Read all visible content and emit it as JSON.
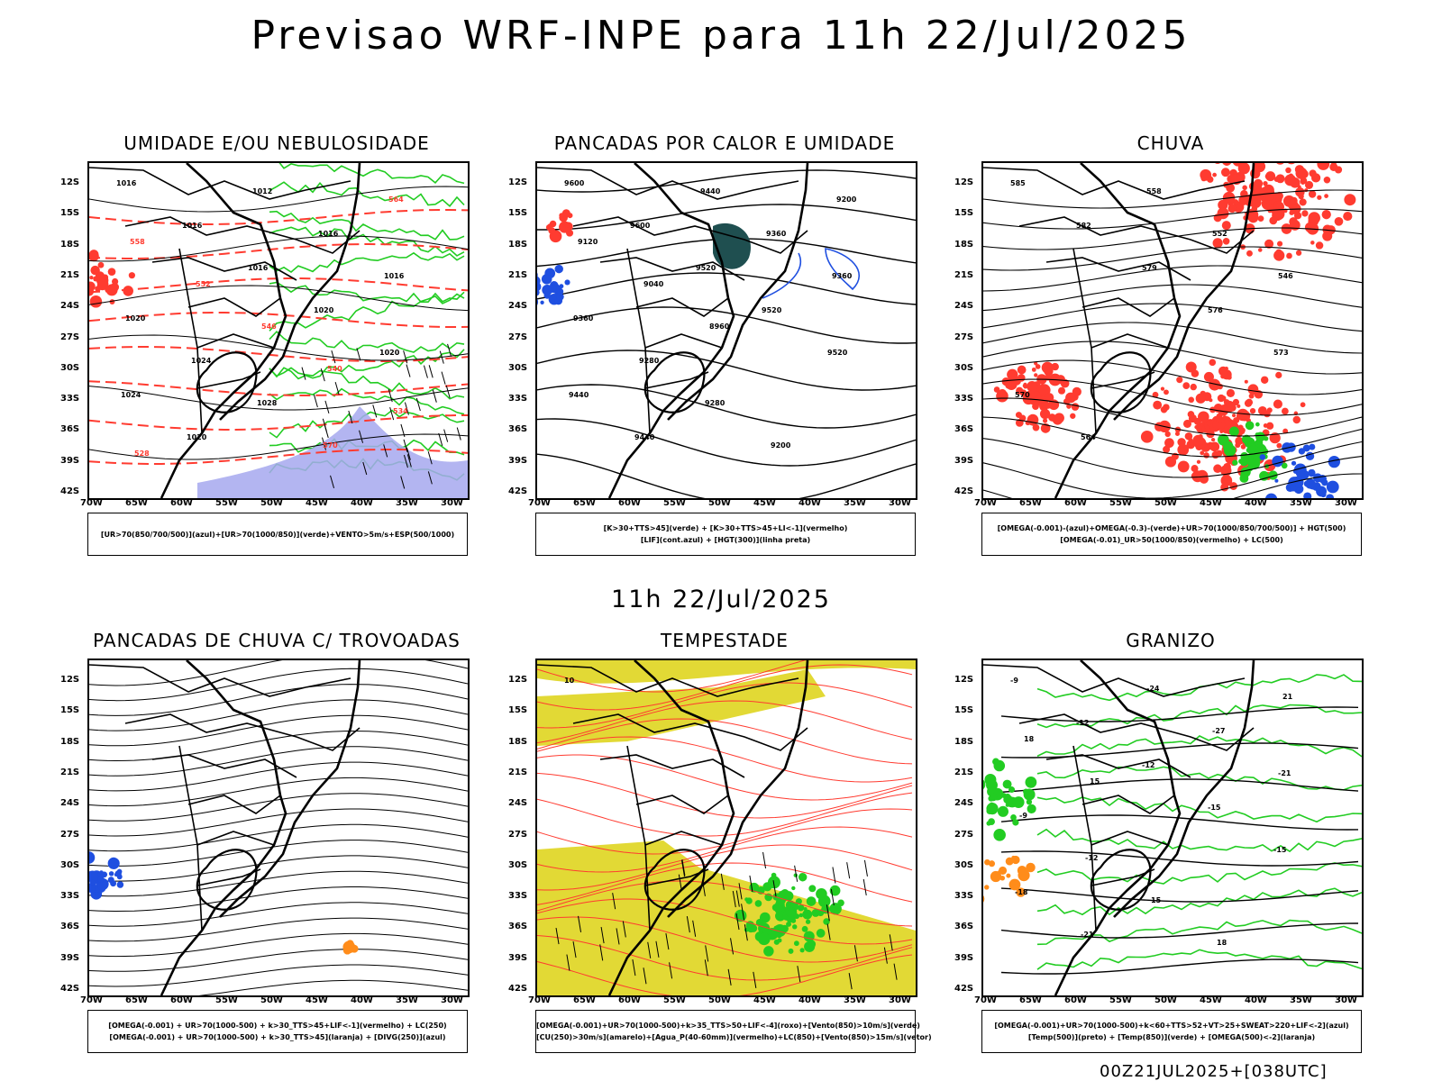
{
  "header": {
    "title": "Previsao WRF-INPE  para 11h 22/Jul/2025"
  },
  "mid_label": "11h 22/Jul/2025",
  "footer_code": "00Z21JUL2025+[038UTC]",
  "axes": {
    "lat_ticks": [
      "12S",
      "15S",
      "18S",
      "21S",
      "24S",
      "27S",
      "30S",
      "33S",
      "36S",
      "39S",
      "42S"
    ],
    "lon_ticks": [
      "70W",
      "65W",
      "60W",
      "55W",
      "50W",
      "45W",
      "40W",
      "35W",
      "30W"
    ]
  },
  "colors": {
    "red": "#ff3b30",
    "green": "#22cc22",
    "blue": "#1f4fe0",
    "lightblue": "#a6a8ee",
    "yellow": "#e2d935",
    "teal": "#1f4f50",
    "orange": "#ff8c1a"
  },
  "panels": [
    {
      "title": "UMIDADE E/OU NEBULOSIDADE",
      "legend": [
        "[UR>70(850/700/500)](azul)+[UR>70(1000/850)](verde)+VENTO>5m/s+ESP(500/1000)"
      ],
      "contour_labels": [
        "1016",
        "1016",
        "1016",
        "1020",
        "1020",
        "1024",
        "1020",
        "1012",
        "1016",
        "1016",
        "1020",
        "1024",
        "1028",
        "570",
        "564",
        "558",
        "552",
        "546",
        "540",
        "534",
        "528"
      ]
    },
    {
      "title": "PANCADAS POR CALOR E UMIDADE",
      "legend": [
        "[K>30+TTS>45](verde) + [K>30+TTS>45+LI<-1](vermelho)",
        "[LIF](cont.azul) + [HGT(300)](linha preta)"
      ],
      "contour_labels": [
        "9600",
        "9600",
        "9520",
        "9520",
        "9520",
        "9440",
        "9440",
        "9440",
        "9360",
        "9360",
        "9360",
        "9280",
        "9280",
        "9200",
        "9200",
        "9120",
        "9040",
        "8960"
      ]
    },
    {
      "title": "CHUVA",
      "legend": [
        "[OMEGA(-0.001)-(azul)+OMEGA(-0.3)-(verde)+UR>70(1000/850/700/500)] + HGT(500)",
        "[OMEGA(-0.01)_UR>50(1000/850)(vermelho) + LC(500)"
      ],
      "contour_labels": [
        "585",
        "582",
        "579",
        "576",
        "573",
        "570",
        "564",
        "558",
        "552",
        "546"
      ]
    },
    {
      "title": "PANCADAS DE CHUVA C/ TROVOADAS",
      "legend": [
        "[OMEGA(-0.001) + UR>70(1000-500) + k>30_TTS>45+LIF<-1](vermelho) + LC(250)",
        "[OMEGA(-0.001) + UR>70(1000-500) + k>30_TTS>45](laranja) + [DIVG(250)](azul)"
      ],
      "contour_labels": []
    },
    {
      "title": "TEMPESTADE",
      "legend": [
        "[OMEGA(-0.001)+UR>70(1000-500)+k>35_TTS>50+LIF<-4](roxo)+[Vento(850)>10m/s](verde)",
        "[CU(250)>30m/s](amarelo)+[Agua_P(40-60mm)](vermelho)+LC(850)+[Vento(850)>15m/s](vetor)"
      ],
      "contour_labels": [
        "10"
      ]
    },
    {
      "title": "GRANIZO",
      "legend": [
        "[OMEGA(-0.001)+UR>70(1000-500)+k<60+TTS>52+VT>25+SWEAT>220+LIF<-2](azul)",
        "[Temp(500)](preto) + [Temp(850)](verde) + [OMEGA(500)<-2](laranja)"
      ],
      "contour_labels": [
        "-9",
        "-12",
        "-12",
        "-15",
        "-15",
        "-18",
        "-21",
        "-24",
        "-27",
        "-21",
        "-9",
        "-12",
        "15",
        "18",
        "21",
        "18",
        "15"
      ]
    }
  ]
}
